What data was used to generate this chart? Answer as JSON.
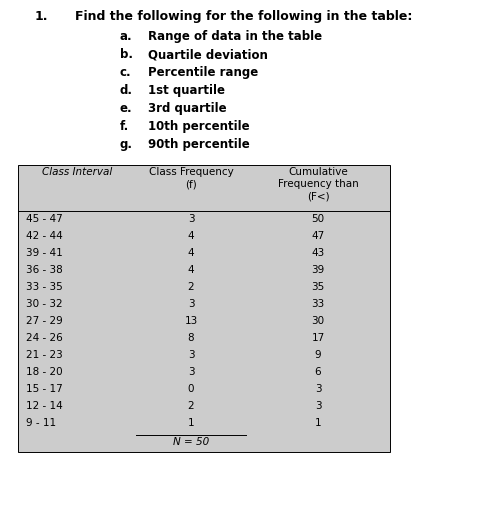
{
  "title_number": "1.",
  "title_text": "Find the following for the following in the table:",
  "items": [
    [
      "a.",
      "Range of data in the table"
    ],
    [
      "b.",
      "Quartile deviation"
    ],
    [
      "c.",
      "Percentile range"
    ],
    [
      "d.",
      "1st quartile"
    ],
    [
      "e.",
      "3rd quartile"
    ],
    [
      "f.",
      "10th percentile"
    ],
    [
      "g.",
      "90th percentile"
    ]
  ],
  "col_headers": [
    "Class Interval",
    "Class Frequency\n(f)",
    "Cumulative\nFrequency than\n(F<)"
  ],
  "rows": [
    [
      "45 - 47",
      "3",
      "50"
    ],
    [
      "42 - 44",
      "4",
      "47"
    ],
    [
      "39 - 41",
      "4",
      "43"
    ],
    [
      "36 - 38",
      "4",
      "39"
    ],
    [
      "33 - 35",
      "2",
      "35"
    ],
    [
      "30 - 32",
      "3",
      "33"
    ],
    [
      "27 - 29",
      "13",
      "30"
    ],
    [
      "24 - 26",
      "8",
      "17"
    ],
    [
      "21 - 23",
      "3",
      "9"
    ],
    [
      "18 - 20",
      "3",
      "6"
    ],
    [
      "15 - 17",
      "0",
      "3"
    ],
    [
      "12 - 14",
      "2",
      "3"
    ],
    [
      "9 - 11",
      "1",
      "1"
    ]
  ],
  "footer": "N = 50",
  "bg_color": "#cccccc",
  "fig_bg": "#ffffff",
  "font_size_title": 9.0,
  "font_size_items": 8.5,
  "font_size_table_header": 7.5,
  "font_size_table_data": 7.5
}
